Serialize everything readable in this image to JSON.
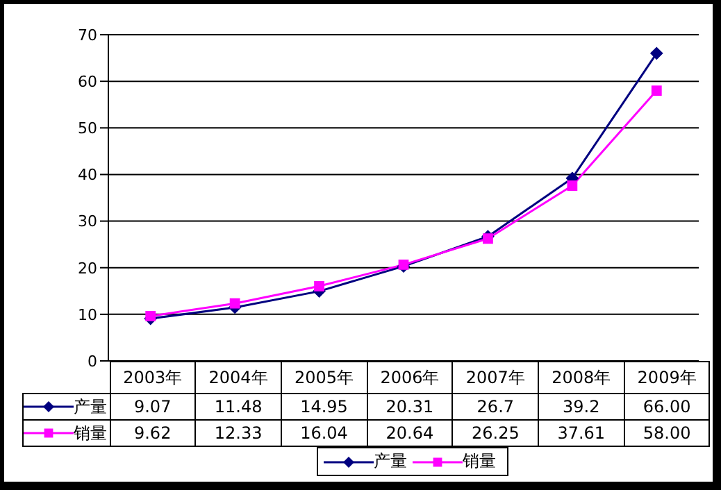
{
  "chart_data": {
    "type": "line",
    "categories": [
      "2003年",
      "2004年",
      "2005年",
      "2006年",
      "2007年",
      "2008年",
      "2009年"
    ],
    "series": [
      {
        "name": "产量",
        "color": "#000080",
        "marker": "diamond",
        "values": [
          9.07,
          11.48,
          14.95,
          20.31,
          26.7,
          39.2,
          66.0
        ],
        "value_labels": [
          "9.07",
          "11.48",
          "14.95",
          "20.31",
          "26.7",
          "39.2",
          "66.00"
        ]
      },
      {
        "name": "销量",
        "color": "#ff00ff",
        "marker": "square",
        "values": [
          9.62,
          12.33,
          16.04,
          20.64,
          26.25,
          37.61,
          58.0
        ],
        "value_labels": [
          "9.62",
          "12.33",
          "16.04",
          "20.64",
          "26.25",
          "37.61",
          "58.00"
        ]
      }
    ],
    "ylim": [
      0,
      70
    ],
    "yticks": [
      0,
      10,
      20,
      30,
      40,
      50,
      60,
      70
    ],
    "grid": "y",
    "legend": "bottom"
  }
}
